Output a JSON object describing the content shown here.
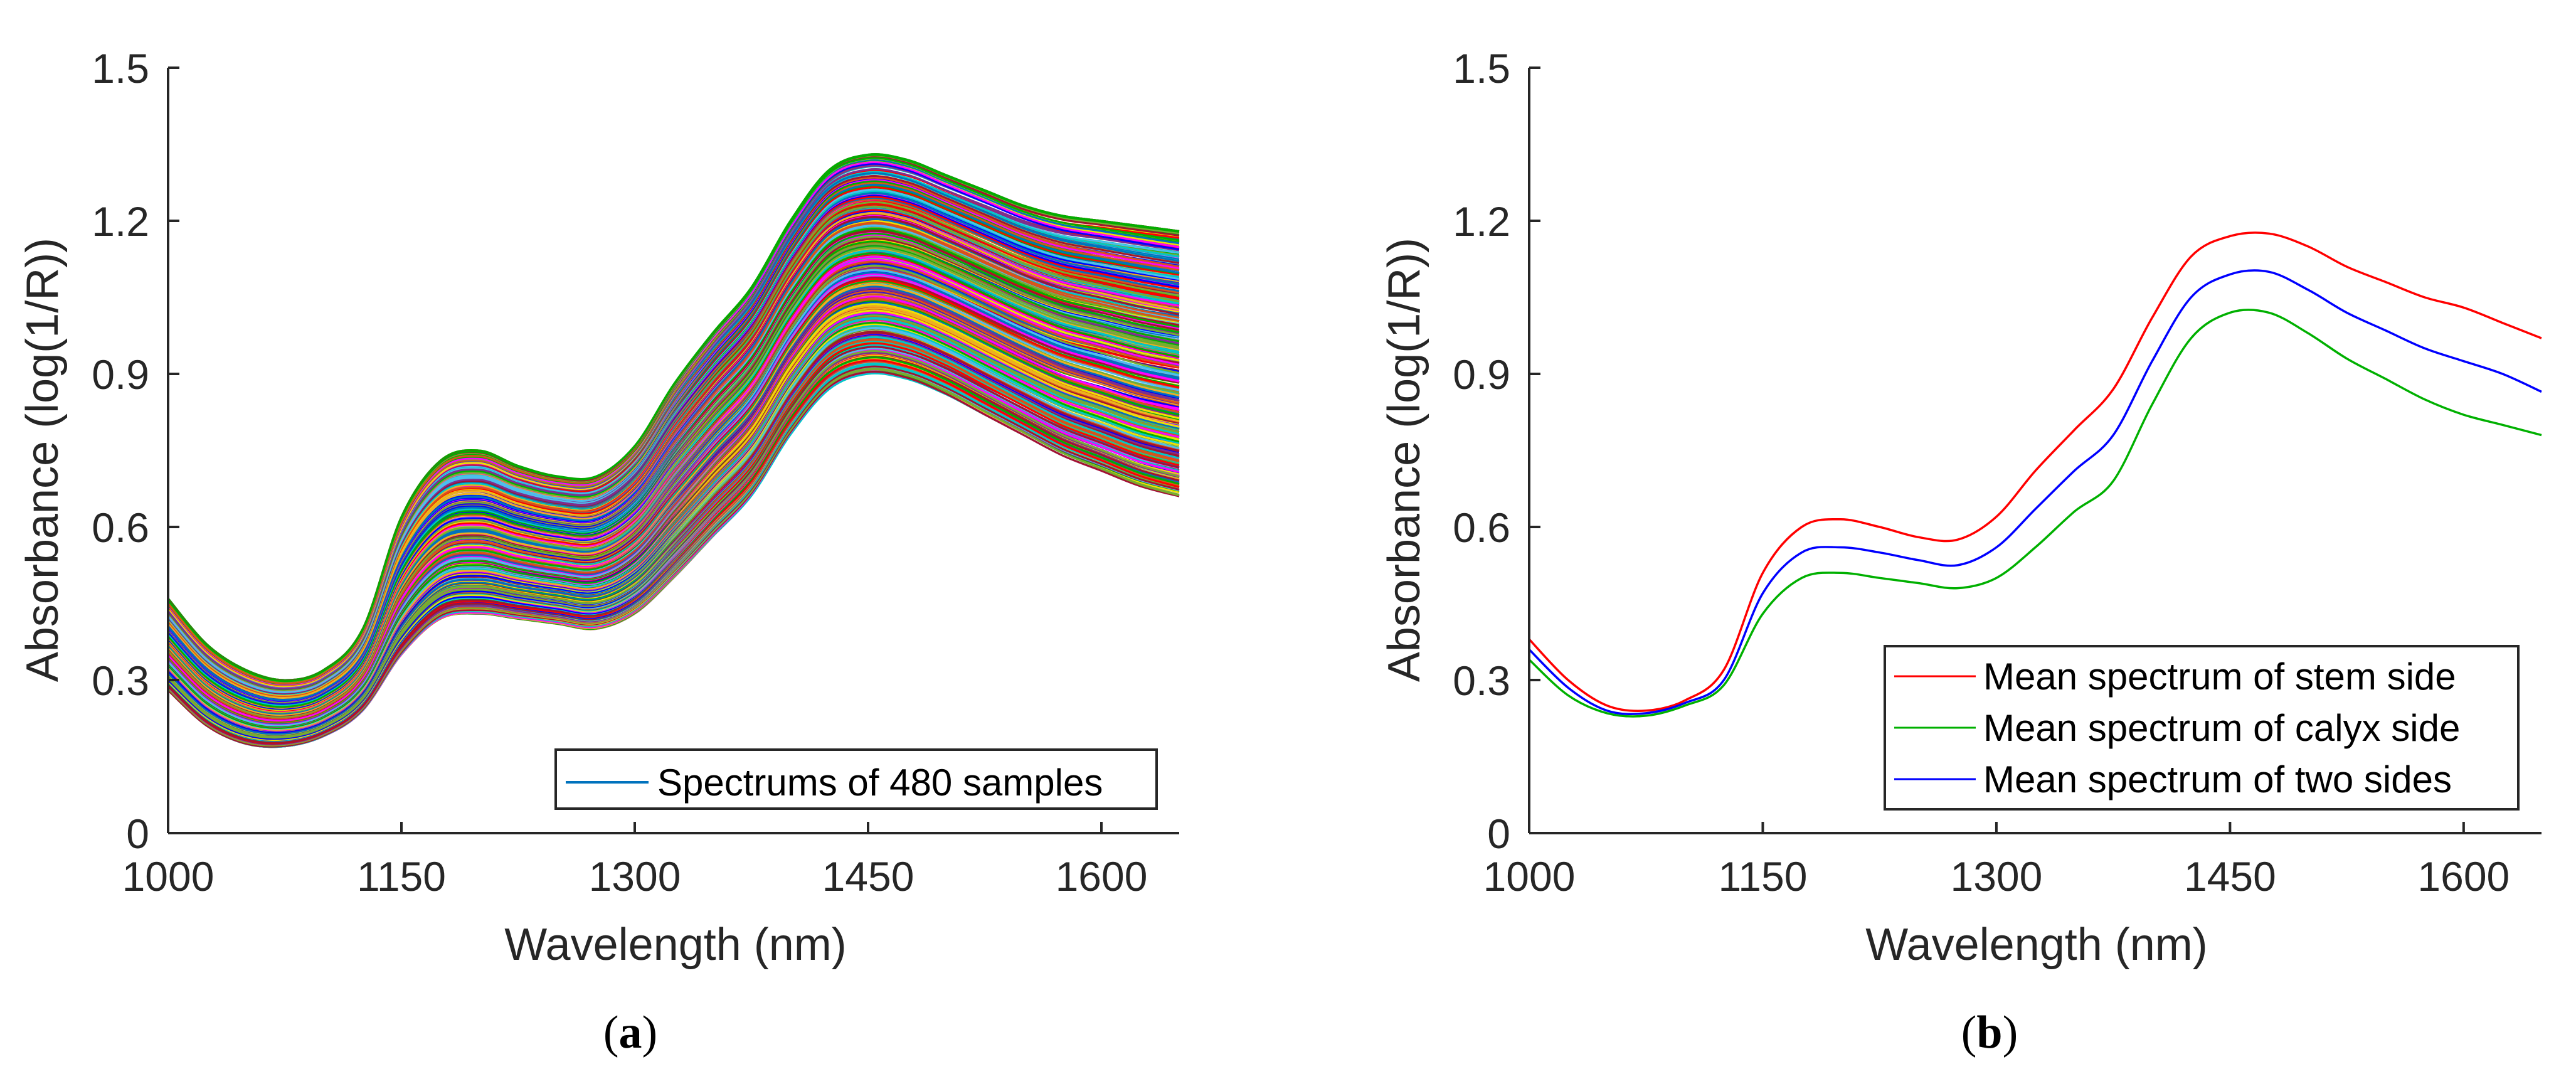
{
  "chart_data": [
    {
      "type": "line",
      "panel_label": "a",
      "xlabel": "Wavelength (nm)",
      "ylabel": "Absorbance (log(1/R))",
      "xlim": [
        1000,
        1650
      ],
      "ylim": [
        0,
        1.5
      ],
      "xticks": [
        1000,
        1150,
        1300,
        1450,
        1600
      ],
      "yticks": [
        0,
        0.3,
        0.6,
        0.9,
        1.2,
        1.5
      ],
      "ytick_labels": [
        "0",
        "0.3",
        "0.6",
        "0.9",
        "1.2",
        "1.5"
      ],
      "legend": {
        "position": "bottom-right",
        "entries": [
          {
            "label": "Spectrums of 480 samples",
            "color": "#0072bd"
          }
        ]
      },
      "ensemble": {
        "description_count": 480,
        "x": [
          1000,
          1025,
          1050,
          1075,
          1100,
          1125,
          1150,
          1175,
          1200,
          1225,
          1250,
          1275,
          1300,
          1325,
          1350,
          1375,
          1400,
          1425,
          1450,
          1475,
          1500,
          1525,
          1550,
          1575,
          1600,
          1625,
          1650
        ],
        "lower": [
          0.28,
          0.21,
          0.175,
          0.17,
          0.19,
          0.24,
          0.35,
          0.42,
          0.43,
          0.42,
          0.41,
          0.4,
          0.43,
          0.5,
          0.58,
          0.66,
          0.78,
          0.87,
          0.9,
          0.89,
          0.86,
          0.82,
          0.78,
          0.74,
          0.71,
          0.68,
          0.66
        ],
        "upper": [
          0.46,
          0.37,
          0.32,
          0.3,
          0.32,
          0.4,
          0.62,
          0.73,
          0.75,
          0.72,
          0.7,
          0.7,
          0.76,
          0.88,
          0.98,
          1.07,
          1.2,
          1.3,
          1.33,
          1.32,
          1.29,
          1.26,
          1.23,
          1.21,
          1.2,
          1.19,
          1.18
        ]
      },
      "series_colors": [
        "#0072bd",
        "#d95319",
        "#edb120",
        "#7e2f8e",
        "#77ac30",
        "#4dbeee",
        "#a2142f",
        "#ff0000",
        "#00b000",
        "#0000ff",
        "#ff00ff",
        "#00c8c8",
        "#f0e000"
      ]
    },
    {
      "type": "line",
      "panel_label": "b",
      "xlabel": "Wavelength (nm)",
      "ylabel": "Absorbance (log(1/R))",
      "xlim": [
        1000,
        1650
      ],
      "ylim": [
        0,
        1.5
      ],
      "xticks": [
        1000,
        1150,
        1300,
        1450,
        1600
      ],
      "yticks": [
        0,
        0.3,
        0.6,
        0.9,
        1.2,
        1.5
      ],
      "ytick_labels": [
        "0",
        "0.3",
        "0.6",
        "0.9",
        "1.2",
        "1.5"
      ],
      "legend": {
        "position": "bottom-right",
        "entries": [
          {
            "label": "Mean spectrum of stem side",
            "color": "#ff0000"
          },
          {
            "label": "Mean spectrum of calyx side",
            "color": "#00b000"
          },
          {
            "label": "Mean spectrum of two sides",
            "color": "#0000ff"
          }
        ]
      },
      "x": [
        1000,
        1025,
        1050,
        1075,
        1100,
        1125,
        1150,
        1175,
        1200,
        1225,
        1250,
        1275,
        1300,
        1325,
        1350,
        1375,
        1400,
        1425,
        1450,
        1475,
        1500,
        1525,
        1550,
        1575,
        1600,
        1625,
        1650
      ],
      "series": [
        {
          "name": "Mean spectrum of stem side",
          "color": "#ff0000",
          "values": [
            0.38,
            0.3,
            0.25,
            0.24,
            0.26,
            0.32,
            0.51,
            0.6,
            0.615,
            0.6,
            0.58,
            0.575,
            0.62,
            0.71,
            0.79,
            0.87,
            1.01,
            1.13,
            1.17,
            1.175,
            1.15,
            1.11,
            1.08,
            1.05,
            1.03,
            1.0,
            0.97
          ]
        },
        {
          "name": "Mean spectrum of calyx side",
          "color": "#00b000",
          "values": [
            0.34,
            0.27,
            0.235,
            0.23,
            0.25,
            0.29,
            0.43,
            0.5,
            0.51,
            0.5,
            0.49,
            0.48,
            0.5,
            0.56,
            0.63,
            0.69,
            0.84,
            0.97,
            1.02,
            1.02,
            0.98,
            0.93,
            0.89,
            0.85,
            0.82,
            0.8,
            0.78
          ]
        },
        {
          "name": "Mean spectrum of two sides",
          "color": "#0000ff",
          "values": [
            0.36,
            0.285,
            0.24,
            0.235,
            0.255,
            0.3,
            0.47,
            0.55,
            0.56,
            0.55,
            0.535,
            0.525,
            0.56,
            0.635,
            0.71,
            0.78,
            0.925,
            1.05,
            1.095,
            1.1,
            1.065,
            1.02,
            0.985,
            0.95,
            0.925,
            0.9,
            0.865
          ]
        }
      ]
    }
  ]
}
